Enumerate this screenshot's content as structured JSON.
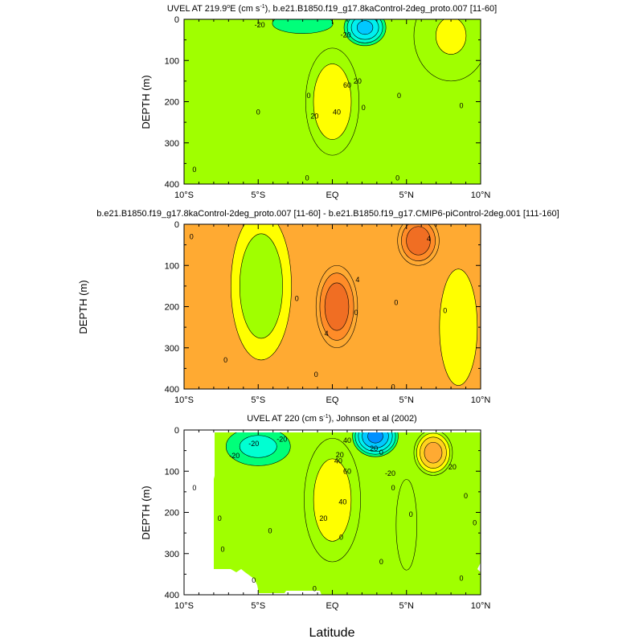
{
  "figure": {
    "x_axis_label": "Latitude",
    "x_tick_labels": [
      "10°S",
      "5°S",
      "EQ",
      "5°N",
      "10°N"
    ],
    "x_range": [
      -10,
      10
    ],
    "y_tick_labels": [
      "0",
      "100",
      "200",
      "300",
      "400"
    ],
    "y_range": [
      0,
      400
    ]
  },
  "chart_data": [
    {
      "type": "heatmap",
      "title_parts": {
        "a": "UVEL AT 219.9",
        "b": "o",
        "c": "E (cm s",
        "d": "-1",
        "e": "), b.e21.B1850.f19_g17.8kaControl-2deg_proto.007 [11-60]"
      },
      "ylabel": "DEPTH (m)",
      "variable": "zonal velocity (cm/s)",
      "y_reversed": true,
      "contour_labels": [
        {
          "text": "-20",
          "lat": -4.9,
          "depth": 14
        },
        {
          "text": "-20",
          "lat": 0.9,
          "depth": 38
        },
        {
          "text": "0",
          "lat": -5.0,
          "depth": 225
        },
        {
          "text": "0",
          "lat": -1.6,
          "depth": 185
        },
        {
          "text": "20",
          "lat": 1.7,
          "depth": 150
        },
        {
          "text": "60",
          "lat": 1.0,
          "depth": 160
        },
        {
          "text": "40",
          "lat": 0.3,
          "depth": 225
        },
        {
          "text": "20",
          "lat": -1.2,
          "depth": 235
        },
        {
          "text": "0",
          "lat": 2.1,
          "depth": 215
        },
        {
          "text": "0",
          "lat": 4.5,
          "depth": 185
        },
        {
          "text": "0",
          "lat": 8.7,
          "depth": 210
        },
        {
          "text": "0",
          "lat": -9.3,
          "depth": 365
        },
        {
          "text": "0",
          "lat": -1.7,
          "depth": 385
        },
        {
          "text": "0",
          "lat": 4.4,
          "depth": 385
        }
      ],
      "features": [
        {
          "lat": 0,
          "depth": 150,
          "value": 90,
          "lat_halfwidth": 1.4,
          "depth_halfwidth": 70
        },
        {
          "lat": 0,
          "depth": 200,
          "value": 20,
          "lat_halfwidth": 1.8,
          "depth_halfwidth": 130
        },
        {
          "lat": 2.2,
          "depth": 20,
          "value": -45,
          "lat_halfwidth": 1.6,
          "depth_halfwidth": 50
        },
        {
          "lat": -2,
          "depth": 10,
          "value": -12,
          "lat_halfwidth": 5,
          "depth_halfwidth": 60
        },
        {
          "lat": 8,
          "depth": 40,
          "value": 12,
          "lat_halfwidth": 2.5,
          "depth_halfwidth": 110
        }
      ]
    },
    {
      "type": "heatmap",
      "title": "b.e21.B1850.f19_g17.8kaControl-2deg_proto.007 [11-60] - b.e21.B1850.f19_g17.CMIP6-piControl-2deg.001 [111-160]",
      "ylabel": "DEPTH (m)",
      "variable": "zonal velocity difference (cm/s)",
      "y_reversed": true,
      "contour_labels": [
        {
          "text": "0",
          "lat": -9.5,
          "depth": 30
        },
        {
          "text": "4",
          "lat": 6.5,
          "depth": 35
        },
        {
          "text": "4",
          "lat": 1.7,
          "depth": 135
        },
        {
          "text": "0",
          "lat": -2.4,
          "depth": 180
        },
        {
          "text": "0",
          "lat": 4.3,
          "depth": 190
        },
        {
          "text": "0",
          "lat": 7.6,
          "depth": 210
        },
        {
          "text": "0",
          "lat": 1.6,
          "depth": 215
        },
        {
          "text": "4",
          "lat": -0.4,
          "depth": 265
        },
        {
          "text": "0",
          "lat": -7.2,
          "depth": 330
        },
        {
          "text": "0",
          "lat": -1.1,
          "depth": 365
        },
        {
          "text": "0",
          "lat": 4.1,
          "depth": 395
        }
      ],
      "features": [
        {
          "lat": 0.3,
          "depth": 200,
          "value": 6,
          "lat_halfwidth": 1.4,
          "depth_halfwidth": 100
        },
        {
          "lat": 5.8,
          "depth": 40,
          "value": 6,
          "lat_halfwidth": 1.4,
          "depth_halfwidth": 60
        },
        {
          "lat": -4.8,
          "depth": 150,
          "value": -3,
          "lat_halfwidth": 2.5,
          "depth_halfwidth": 220
        },
        {
          "lat": 8.5,
          "depth": 250,
          "value": -2,
          "lat_halfwidth": 1.8,
          "depth_halfwidth": 200
        }
      ]
    },
    {
      "type": "heatmap",
      "title_parts": {
        "a": "UVEL AT 220 (cm s",
        "b": "-1",
        "c": "), Johnson et al (2002)"
      },
      "ylabel": "DEPTH (m)",
      "variable": "zonal velocity (cm/s)",
      "y_reversed": true,
      "contour_labels": [
        {
          "text": "-20",
          "lat": -5.3,
          "depth": 33
        },
        {
          "text": "-20",
          "lat": -3.4,
          "depth": 22
        },
        {
          "text": "-20",
          "lat": -6.6,
          "depth": 62
        },
        {
          "text": "40",
          "lat": 1.0,
          "depth": 25
        },
        {
          "text": "20",
          "lat": 2.8,
          "depth": 45
        },
        {
          "text": "0",
          "lat": 3.3,
          "depth": 55
        },
        {
          "text": "20",
          "lat": 0.5,
          "depth": 60
        },
        {
          "text": "40",
          "lat": 0.4,
          "depth": 75
        },
        {
          "text": "60",
          "lat": 1.0,
          "depth": 100
        },
        {
          "text": "-20",
          "lat": 3.9,
          "depth": 105
        },
        {
          "text": "20",
          "lat": 8.1,
          "depth": 90
        },
        {
          "text": "0",
          "lat": -9.3,
          "depth": 140
        },
        {
          "text": "40",
          "lat": 0.7,
          "depth": 175
        },
        {
          "text": "0",
          "lat": 4.1,
          "depth": 140
        },
        {
          "text": "20",
          "lat": -0.6,
          "depth": 215
        },
        {
          "text": "0",
          "lat": 5.3,
          "depth": 205
        },
        {
          "text": "0",
          "lat": -7.6,
          "depth": 215
        },
        {
          "text": "0",
          "lat": -4.2,
          "depth": 245
        },
        {
          "text": "0",
          "lat": 9.0,
          "depth": 160
        },
        {
          "text": "0",
          "lat": 9.6,
          "depth": 225
        },
        {
          "text": "0",
          "lat": 0.6,
          "depth": 260
        },
        {
          "text": "0",
          "lat": -7.4,
          "depth": 290
        },
        {
          "text": "0",
          "lat": 3.3,
          "depth": 320
        },
        {
          "text": "0",
          "lat": -5.3,
          "depth": 365
        },
        {
          "text": "0",
          "lat": -1.2,
          "depth": 385
        },
        {
          "text": "0",
          "lat": 8.7,
          "depth": 360
        }
      ],
      "features": [
        {
          "lat": 0,
          "depth": 110,
          "value": 95,
          "lat_halfwidth": 1.3,
          "depth_halfwidth": 65
        },
        {
          "lat": 0,
          "depth": 170,
          "value": 18,
          "lat_halfwidth": 1.9,
          "depth_halfwidth": 150
        },
        {
          "lat": 2.9,
          "depth": 15,
          "value": -55,
          "lat_halfwidth": 1.7,
          "depth_halfwidth": 55
        },
        {
          "lat": -5,
          "depth": 40,
          "value": -25,
          "lat_halfwidth": 2.8,
          "depth_halfwidth": 60
        },
        {
          "lat": 6.8,
          "depth": 55,
          "value": 38,
          "lat_halfwidth": 1.3,
          "depth_halfwidth": 55
        },
        {
          "lat": 5,
          "depth": 230,
          "value": 8,
          "lat_halfwidth": 0.7,
          "depth_halfwidth": 110
        }
      ]
    }
  ],
  "colors": {
    "scale": [
      "#0a00c8",
      "#1f3cf0",
      "#0090ff",
      "#00c8ff",
      "#00f0f0",
      "#00ffd2",
      "#00ff7a",
      "#22e61e",
      "#a0ff00",
      "#ffff00",
      "#ffd21e",
      "#ffaa32",
      "#ff8c28",
      "#f06e23",
      "#e6551e",
      "#d23214",
      "#c81400",
      "#a00000"
    ]
  }
}
